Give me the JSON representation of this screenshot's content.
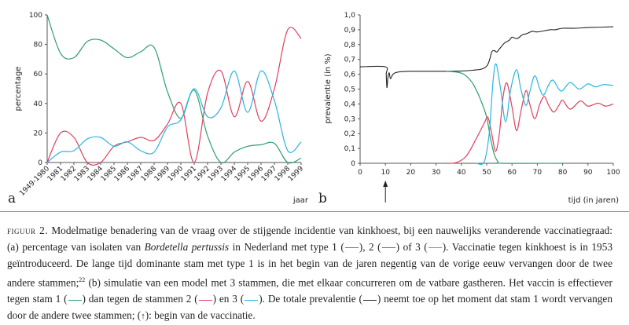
{
  "chart_data": [
    {
      "type": "line",
      "panel_label": "a",
      "xlabel": "jaar",
      "ylabel": "percentage",
      "ylim": [
        0,
        100
      ],
      "yticks": [
        "0",
        "20",
        "40",
        "60",
        "80",
        "100"
      ],
      "categories": [
        "1949-1980",
        "1981",
        "1982",
        "1983",
        "1984",
        "1985",
        "1986",
        "1987",
        "1988",
        "1989",
        "1990",
        "1991",
        "1992",
        "1993",
        "1994",
        "1995",
        "1996",
        "1997",
        "1998",
        "1999"
      ],
      "series": [
        {
          "name": "type 1",
          "color": "#2e9e6e",
          "values": [
            100,
            74,
            71,
            82,
            83,
            77,
            71,
            75,
            78,
            48,
            30,
            49,
            18,
            0,
            7,
            11,
            12,
            13,
            0,
            3
          ]
        },
        {
          "name": "type 2",
          "color": "#e0405e",
          "values": [
            0,
            20,
            17,
            0,
            0,
            11,
            14,
            17,
            15,
            26,
            40,
            0,
            47,
            62,
            31,
            55,
            28,
            50,
            90,
            84
          ]
        },
        {
          "name": "type 3",
          "color": "#2bb5e0",
          "values": [
            0,
            7,
            8,
            16,
            17,
            11,
            14,
            8,
            7,
            24,
            29,
            50,
            31,
            37,
            62,
            34,
            62,
            42,
            8,
            14
          ]
        }
      ]
    },
    {
      "type": "line",
      "panel_label": "b",
      "xlabel": "tijd (in jaren)",
      "ylabel": "prevalentie (in %)",
      "xlim": [
        0,
        100
      ],
      "ylim": [
        0,
        1.0
      ],
      "xticks": [
        "0",
        "10",
        "20",
        "30",
        "40",
        "50",
        "60",
        "70",
        "80",
        "90",
        "100"
      ],
      "yticks": [
        "0",
        "0,1",
        "0,2",
        "0,3",
        "0,4",
        "0,5",
        "0,6",
        "0,7",
        "0,8",
        "0,9",
        "1,0"
      ],
      "annotation": {
        "type": "arrow",
        "x": 10,
        "meaning": "begin van de vaccinatie"
      },
      "series": [
        {
          "name": "totale prevalentie",
          "color": "#222222",
          "points": [
            [
              0,
              0.65
            ],
            [
              10,
              0.65
            ],
            [
              10.3,
              0.6
            ],
            [
              10.6,
              0.51
            ],
            [
              11,
              0.58
            ],
            [
              11.5,
              0.61
            ],
            [
              12,
              0.57
            ],
            [
              13,
              0.6
            ],
            [
              15,
              0.615
            ],
            [
              20,
              0.62
            ],
            [
              30,
              0.62
            ],
            [
              40,
              0.622
            ],
            [
              45,
              0.628
            ],
            [
              48,
              0.635
            ],
            [
              50,
              0.655
            ],
            [
              51,
              0.69
            ],
            [
              52,
              0.75
            ],
            [
              53,
              0.76
            ],
            [
              54,
              0.75
            ],
            [
              55,
              0.77
            ],
            [
              57,
              0.81
            ],
            [
              59,
              0.83
            ],
            [
              60,
              0.85
            ],
            [
              62,
              0.84
            ],
            [
              64,
              0.865
            ],
            [
              66,
              0.875
            ],
            [
              68,
              0.89
            ],
            [
              70,
              0.885
            ],
            [
              75,
              0.9
            ],
            [
              77,
              0.9
            ],
            [
              80,
              0.91
            ],
            [
              85,
              0.91
            ],
            [
              90,
              0.915
            ],
            [
              100,
              0.92
            ]
          ]
        },
        {
          "name": "stam 1",
          "color": "#2e9e6e",
          "points": [
            [
              34,
              0.62
            ],
            [
              38,
              0.615
            ],
            [
              41,
              0.6
            ],
            [
              44,
              0.55
            ],
            [
              46,
              0.49
            ],
            [
              48,
              0.41
            ],
            [
              50,
              0.31
            ],
            [
              51.5,
              0.17
            ],
            [
              53,
              0.06
            ],
            [
              54.5,
              0.01
            ],
            [
              56,
              0
            ],
            [
              80,
              0
            ]
          ]
        },
        {
          "name": "stam 2",
          "color": "#e0405e",
          "points": [
            [
              34,
              0
            ],
            [
              38,
              0.005
            ],
            [
              42,
              0.05
            ],
            [
              46,
              0.17
            ],
            [
              49,
              0.27
            ],
            [
              50.5,
              0.31
            ],
            [
              52,
              0.2
            ],
            [
              53.5,
              0.08
            ],
            [
              55,
              0.2
            ],
            [
              56.5,
              0.45
            ],
            [
              58,
              0.54
            ],
            [
              60,
              0.38
            ],
            [
              61.8,
              0.22
            ],
            [
              63.5,
              0.35
            ],
            [
              65.5,
              0.49
            ],
            [
              67,
              0.4
            ],
            [
              69,
              0.3
            ],
            [
              71,
              0.4
            ],
            [
              72.8,
              0.45
            ],
            [
              74.5,
              0.39
            ],
            [
              76.5,
              0.345
            ],
            [
              78.5,
              0.39
            ],
            [
              80,
              0.425
            ],
            [
              83,
              0.365
            ],
            [
              87,
              0.42
            ],
            [
              90,
              0.385
            ],
            [
              94,
              0.405
            ],
            [
              97,
              0.385
            ],
            [
              100,
              0.4
            ]
          ]
        },
        {
          "name": "stam 3",
          "color": "#2bb5e0",
          "points": [
            [
              46,
              0
            ],
            [
              49,
              0.01
            ],
            [
              51,
              0.2
            ],
            [
              52.5,
              0.55
            ],
            [
              53.7,
              0.67
            ],
            [
              55.5,
              0.5
            ],
            [
              57.5,
              0.28
            ],
            [
              59.5,
              0.5
            ],
            [
              61.8,
              0.63
            ],
            [
              63.5,
              0.5
            ],
            [
              65.5,
              0.39
            ],
            [
              67,
              0.48
            ],
            [
              69,
              0.59
            ],
            [
              71,
              0.5
            ],
            [
              72.5,
              0.46
            ],
            [
              74.5,
              0.53
            ],
            [
              76.2,
              0.56
            ],
            [
              78.5,
              0.5
            ],
            [
              80,
              0.49
            ],
            [
              83,
              0.545
            ],
            [
              86.5,
              0.5
            ],
            [
              90,
              0.535
            ],
            [
              93,
              0.515
            ],
            [
              96,
              0.53
            ],
            [
              100,
              0.525
            ]
          ]
        }
      ]
    }
  ],
  "caption": {
    "label": "figuur 2.",
    "t1": " Modelmatige benadering van de vraag over de stijgende incidentie van kinkhoest, bij een nauwelijks veranderende vaccinatiegraad: (a) percentage van isolaten van ",
    "species": "Bordetella pertussis",
    "t2": " in Nederland met type 1 (",
    "t3": "), 2 (",
    "t4": ") of 3 (",
    "t5": "). Vaccinatie tegen kinkhoest is in 1953 geïntroduceerd. De lange tijd dominante stam met type 1 is in het begin van de jaren negentig van de vorige eeuw vervangen door de twee andere stammen;",
    "ref": "22",
    "t6": " (b) simulatie van een model met 3 stammen, die met elkaar concurreren om de vatbare gastheren. Het vaccin is effectiever tegen stam 1 (",
    "t7": ") dan tegen de stammen 2 (",
    "t8": ") en 3 (",
    "t9": "). De totale prevalentie (",
    "t10": ") neemt toe op het moment dat stam 1 wordt vervangen door de andere twee stammen; (",
    "arrow": "↑",
    "t11": "): begin van de vaccinatie."
  }
}
